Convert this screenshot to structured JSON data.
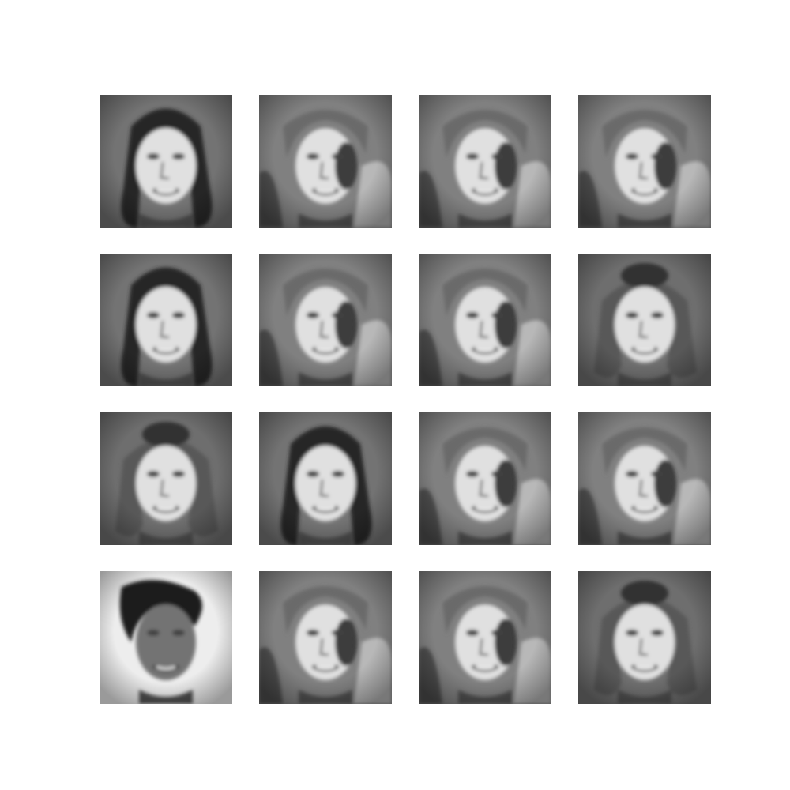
{
  "figure": {
    "rows": 4,
    "cols": 4,
    "tiles": [
      {
        "variant": "woman-dark-hair",
        "tone": 0.5
      },
      {
        "variant": "man-shadow",
        "tone": 0.55
      },
      {
        "variant": "man-shadow",
        "tone": 0.55
      },
      {
        "variant": "man-shadow",
        "tone": 0.55
      },
      {
        "variant": "woman-dark-hair",
        "tone": 0.5
      },
      {
        "variant": "man-shadow",
        "tone": 0.55
      },
      {
        "variant": "man-shadow",
        "tone": 0.55
      },
      {
        "variant": "woman-curly-hair",
        "tone": 0.48
      },
      {
        "variant": "woman-curly-hair",
        "tone": 0.48
      },
      {
        "variant": "woman-dark-hair",
        "tone": 0.5
      },
      {
        "variant": "man-shadow",
        "tone": 0.55
      },
      {
        "variant": "man-shadow",
        "tone": 0.55
      },
      {
        "variant": "woman-bright-bg",
        "tone": 0.85
      },
      {
        "variant": "man-shadow",
        "tone": 0.55
      },
      {
        "variant": "man-shadow",
        "tone": 0.55
      },
      {
        "variant": "woman-curly-hair",
        "tone": 0.48
      }
    ]
  }
}
